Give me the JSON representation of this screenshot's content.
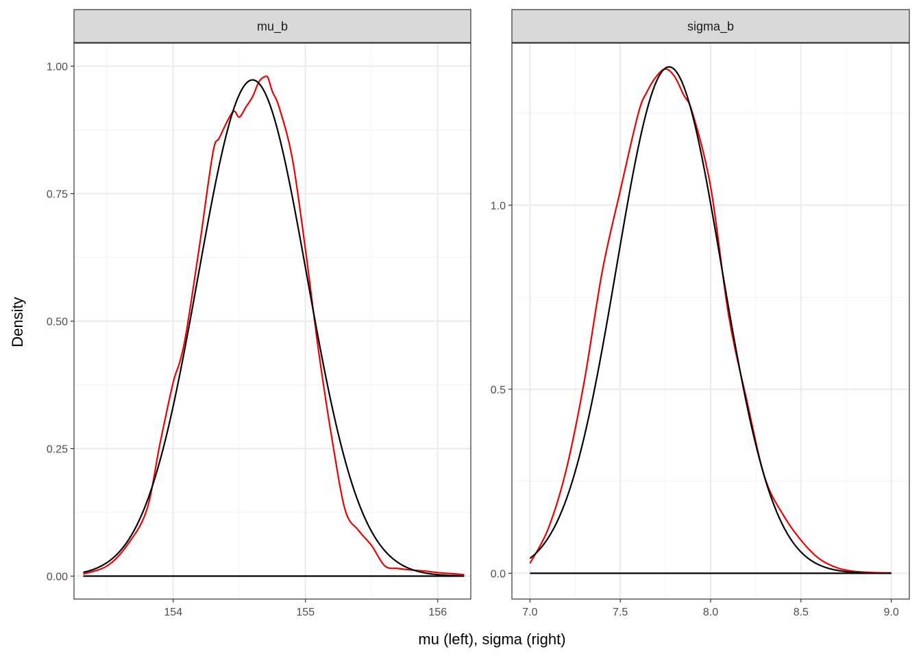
{
  "chart_data": {
    "type": "line",
    "ylabel": "Density",
    "xlabel": "mu (left), sigma (right)",
    "grid": true,
    "theme": "bw",
    "colors": {
      "posterior_density": "#ee0000",
      "normal_approx": "#000000",
      "strip_fill": "#d9d9d9",
      "grid_major": "#ebebeb",
      "grid_minor": "#f2f2f2",
      "panel_border": "#333333"
    },
    "panels": [
      {
        "label": "mu_b",
        "xlim": [
          153.25,
          156.25
        ],
        "ylim": [
          -0.045,
          1.045
        ],
        "x_ticks": [
          154,
          155,
          156
        ],
        "x_tick_labels": [
          "154",
          "155",
          "156"
        ],
        "y_ticks": [
          0,
          0.25,
          0.5,
          0.75,
          1.0
        ],
        "y_tick_labels": [
          "0.00",
          "0.25",
          "0.50",
          "0.75",
          "1.00"
        ],
        "series": [
          {
            "color": "#ee0000",
            "x": [
              153.32,
              153.5,
              153.65,
              153.8,
              153.9,
              154.0,
              154.05,
              154.1,
              154.2,
              154.3,
              154.35,
              154.45,
              154.5,
              154.55,
              154.6,
              154.65,
              154.7,
              154.72,
              154.75,
              154.8,
              154.9,
              155.0,
              155.1,
              155.2,
              155.3,
              155.4,
              155.5,
              155.6,
              155.7,
              155.8,
              155.9,
              156.0,
              156.1,
              156.2
            ],
            "y": [
              0.004,
              0.02,
              0.06,
              0.13,
              0.26,
              0.38,
              0.42,
              0.48,
              0.65,
              0.83,
              0.86,
              0.91,
              0.9,
              0.92,
              0.94,
              0.97,
              0.98,
              0.975,
              0.95,
              0.92,
              0.82,
              0.64,
              0.44,
              0.27,
              0.13,
              0.09,
              0.06,
              0.02,
              0.015,
              0.012,
              0.01,
              0.007,
              0.005,
              0.003
            ]
          },
          {
            "color": "#000000",
            "type": "normal",
            "mean": 154.6,
            "sd": 0.41,
            "x_range": [
              153.32,
              156.2
            ]
          },
          {
            "color": "#000000",
            "type": "baseline",
            "y": 0,
            "x_range": [
              153.32,
              156.2
            ]
          }
        ]
      },
      {
        "label": "sigma_b",
        "xlim": [
          6.9,
          9.1
        ],
        "ylim": [
          -0.07,
          1.44
        ],
        "x_ticks": [
          7.0,
          7.5,
          8.0,
          8.5,
          9.0
        ],
        "x_tick_labels": [
          "7.0",
          "7.5",
          "8.0",
          "8.5",
          "9.0"
        ],
        "y_ticks": [
          0,
          0.5,
          1.0
        ],
        "y_tick_labels": [
          "0.0",
          "0.5",
          "1.0"
        ],
        "series": [
          {
            "color": "#ee0000",
            "x": [
              7.0,
              7.1,
              7.2,
              7.3,
              7.4,
              7.5,
              7.6,
              7.65,
              7.7,
              7.75,
              7.8,
              7.85,
              7.9,
              8.0,
              8.1,
              8.2,
              8.3,
              8.4,
              8.5,
              8.6,
              8.7,
              8.8,
              8.9,
              9.0
            ],
            "y": [
              0.027,
              0.12,
              0.28,
              0.52,
              0.82,
              1.04,
              1.25,
              1.31,
              1.35,
              1.37,
              1.35,
              1.3,
              1.25,
              1.05,
              0.7,
              0.47,
              0.26,
              0.16,
              0.09,
              0.04,
              0.015,
              0.005,
              0.002,
              0.001
            ]
          },
          {
            "color": "#000000",
            "type": "normal",
            "mean": 7.77,
            "sd": 0.29,
            "x_range": [
              7.0,
              9.0
            ]
          },
          {
            "color": "#000000",
            "type": "baseline",
            "y": 0,
            "x_range": [
              7.0,
              9.0
            ]
          }
        ]
      }
    ]
  }
}
